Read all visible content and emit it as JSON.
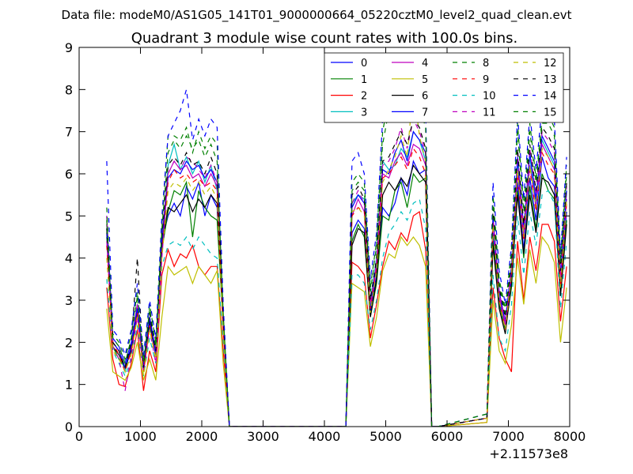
{
  "figure": {
    "suptitle": "Data file: modeM0/AS1G05_141T01_9000000664_05220cztM0_level2_quad_clean.evt"
  },
  "chart_data": {
    "type": "line",
    "title": "Quadrant 3 module wise count rates with 100.0s bins.",
    "xlabel": "",
    "ylabel": "",
    "x_offset_label": "+2.11573e8",
    "xlim": [
      0,
      8000
    ],
    "ylim": [
      0,
      9
    ],
    "xticks": [
      0,
      1000,
      2000,
      3000,
      4000,
      5000,
      6000,
      7000,
      8000
    ],
    "yticks": [
      0,
      1,
      2,
      3,
      4,
      5,
      6,
      7,
      8,
      9
    ],
    "grid": false,
    "legend_placement": "top-right",
    "x": [
      450,
      550,
      650,
      750,
      850,
      950,
      1050,
      1150,
      1250,
      1350,
      1450,
      1550,
      1650,
      1750,
      1850,
      1950,
      2050,
      2150,
      2250,
      2350,
      2450,
      2550,
      4350,
      4450,
      4550,
      4650,
      4750,
      4850,
      4950,
      5050,
      5150,
      5250,
      5350,
      5450,
      5550,
      5650,
      5750,
      5850,
      6650,
      6750,
      6850,
      6950,
      7050,
      7150,
      7250,
      7350,
      7450,
      7550,
      7650,
      7750,
      7850,
      7950
    ],
    "series": [
      {
        "name": "0",
        "color": "#0000ff",
        "dash": "solid",
        "values": [
          5.0,
          2.1,
          1.9,
          1.5,
          2.0,
          2.9,
          1.4,
          2.6,
          1.8,
          4.4,
          5.0,
          5.3,
          5.0,
          5.7,
          5.4,
          5.8,
          5.0,
          5.5,
          5.2,
          2.5,
          0.0,
          0.0,
          0.0,
          4.6,
          4.9,
          4.7,
          2.7,
          3.6,
          5.2,
          5.0,
          5.3,
          5.9,
          5.5,
          6.3,
          6.0,
          6.1,
          0.0,
          0.0,
          0.2,
          4.6,
          3.0,
          2.4,
          3.5,
          5.8,
          4.2,
          5.9,
          4.9,
          6.4,
          5.9,
          5.7,
          3.3,
          5.1
        ]
      },
      {
        "name": "1",
        "color": "#008000",
        "dash": "solid",
        "values": [
          4.8,
          1.9,
          1.6,
          1.4,
          1.9,
          2.7,
          1.4,
          2.4,
          1.7,
          4.2,
          5.1,
          5.6,
          5.5,
          5.8,
          4.5,
          5.6,
          5.2,
          5.0,
          4.9,
          2.4,
          0.0,
          0.0,
          0.0,
          4.4,
          4.8,
          4.5,
          2.6,
          3.4,
          5.0,
          4.9,
          5.6,
          5.8,
          5.2,
          6.0,
          5.8,
          5.9,
          0.0,
          0.0,
          0.2,
          4.4,
          2.9,
          2.3,
          3.3,
          5.6,
          4.0,
          5.7,
          4.7,
          6.0,
          5.6,
          5.4,
          3.2,
          4.9
        ]
      },
      {
        "name": "2",
        "color": "#ff0000",
        "dash": "solid",
        "values": [
          3.3,
          1.6,
          1.0,
          0.95,
          1.5,
          2.3,
          0.85,
          1.8,
          1.3,
          3.6,
          4.2,
          3.8,
          4.1,
          4.0,
          4.3,
          3.8,
          3.6,
          3.8,
          3.8,
          1.8,
          0.0,
          0.0,
          0.0,
          3.9,
          3.8,
          3.6,
          2.1,
          2.9,
          3.8,
          4.4,
          4.2,
          4.6,
          4.4,
          5.0,
          5.1,
          4.2,
          0.0,
          0.0,
          0.1,
          3.3,
          2.1,
          1.6,
          1.3,
          4.4,
          3.0,
          4.5,
          3.7,
          4.8,
          4.8,
          4.4,
          2.5,
          3.8
        ]
      },
      {
        "name": "3",
        "color": "#00bfbf",
        "dash": "solid",
        "values": [
          4.5,
          2.0,
          1.8,
          1.3,
          1.9,
          2.8,
          1.3,
          2.5,
          1.7,
          4.3,
          6.2,
          6.7,
          6.1,
          6.4,
          6.0,
          6.3,
          5.8,
          6.2,
          5.6,
          2.4,
          0.0,
          0.0,
          0.0,
          5.3,
          5.5,
          5.4,
          3.0,
          4.0,
          6.3,
          6.1,
          6.2,
          6.6,
          6.4,
          7.0,
          6.8,
          6.3,
          0.0,
          0.0,
          0.2,
          5.0,
          3.1,
          2.4,
          3.8,
          6.3,
          4.6,
          6.4,
          5.3,
          6.8,
          6.5,
          6.2,
          3.5,
          5.6
        ]
      },
      {
        "name": "4",
        "color": "#bf00bf",
        "dash": "solid",
        "values": [
          5.0,
          2.0,
          1.8,
          1.4,
          1.9,
          2.9,
          1.4,
          2.6,
          1.8,
          4.5,
          6.0,
          6.3,
          6.1,
          6.2,
          5.9,
          6.0,
          5.7,
          6.0,
          5.7,
          2.5,
          0.0,
          0.0,
          0.0,
          5.0,
          5.4,
          5.1,
          2.9,
          3.8,
          6.0,
          5.9,
          6.3,
          6.5,
          6.2,
          6.7,
          6.6,
          6.2,
          0.0,
          0.0,
          0.2,
          4.9,
          3.1,
          2.4,
          3.7,
          6.1,
          4.5,
          6.2,
          5.2,
          6.7,
          6.4,
          6.1,
          3.4,
          5.4
        ]
      },
      {
        "name": "5",
        "color": "#bfbf00",
        "dash": "solid",
        "values": [
          2.8,
          1.3,
          1.2,
          1.1,
          1.4,
          2.0,
          1.1,
          1.6,
          1.1,
          2.6,
          3.8,
          3.6,
          3.7,
          3.8,
          3.4,
          3.8,
          3.6,
          3.4,
          3.7,
          1.5,
          0.0,
          0.0,
          0.0,
          3.4,
          3.3,
          3.2,
          1.9,
          2.6,
          3.7,
          4.1,
          4.0,
          4.5,
          4.3,
          4.5,
          4.3,
          3.8,
          0.0,
          0.0,
          0.1,
          3.0,
          1.8,
          1.5,
          2.4,
          4.0,
          2.9,
          4.2,
          3.4,
          4.5,
          4.3,
          3.9,
          2.0,
          3.3
        ]
      },
      {
        "name": "6",
        "color": "#000000",
        "dash": "solid",
        "values": [
          4.6,
          1.9,
          1.7,
          1.4,
          1.8,
          2.8,
          1.3,
          2.5,
          1.7,
          4.3,
          5.2,
          5.1,
          5.3,
          5.5,
          5.1,
          5.4,
          5.2,
          5.5,
          5.3,
          2.4,
          0.0,
          0.0,
          0.0,
          4.3,
          4.7,
          4.6,
          2.6,
          3.5,
          5.5,
          5.8,
          5.6,
          5.9,
          5.7,
          6.2,
          6.0,
          5.8,
          0.0,
          0.0,
          0.2,
          4.3,
          2.8,
          2.2,
          3.4,
          5.5,
          4.1,
          5.5,
          4.6,
          5.9,
          5.8,
          5.5,
          3.1,
          4.8
        ]
      },
      {
        "name": "7",
        "color": "#0000ff",
        "dash": "solid",
        "values": [
          4.7,
          2.0,
          1.8,
          1.4,
          1.9,
          2.8,
          1.4,
          2.6,
          1.7,
          4.4,
          5.9,
          6.1,
          6.0,
          6.3,
          6.1,
          6.2,
          5.9,
          6.1,
          5.8,
          2.5,
          0.0,
          0.0,
          0.0,
          5.2,
          5.5,
          5.3,
          2.8,
          3.9,
          6.1,
          6.0,
          6.5,
          6.8,
          6.3,
          7.0,
          6.8,
          6.5,
          0.0,
          0.0,
          0.2,
          5.0,
          3.2,
          2.5,
          3.8,
          6.4,
          4.7,
          6.5,
          5.4,
          6.9,
          6.6,
          6.3,
          3.6,
          5.6
        ]
      },
      {
        "name": "8",
        "color": "#008000",
        "dash": "dashed",
        "values": [
          5.2,
          2.2,
          2.0,
          1.6,
          2.2,
          3.2,
          1.6,
          2.9,
          2.0,
          4.8,
          6.9,
          6.9,
          6.8,
          7.1,
          6.5,
          7.0,
          6.6,
          6.9,
          6.7,
          2.8,
          0.0,
          0.0,
          0.0,
          5.8,
          6.0,
          5.8,
          3.3,
          4.4,
          7.0,
          7.8,
          7.5,
          7.7,
          7.6,
          7.9,
          7.8,
          7.3,
          0.0,
          0.0,
          0.3,
          5.5,
          3.5,
          2.8,
          4.2,
          7.2,
          5.2,
          7.2,
          5.9,
          7.3,
          7.4,
          7.1,
          4.0,
          6.2
        ]
      },
      {
        "name": "9",
        "color": "#ff0000",
        "dash": "dashed",
        "values": [
          4.3,
          2.0,
          1.7,
          1.3,
          1.8,
          2.7,
          1.3,
          2.4,
          1.6,
          4.1,
          5.8,
          6.1,
          5.9,
          6.0,
          5.8,
          5.9,
          5.7,
          5.8,
          5.6,
          2.3,
          0.0,
          0.0,
          0.0,
          5.0,
          5.2,
          5.1,
          2.8,
          3.8,
          5.9,
          6.0,
          6.2,
          6.4,
          6.1,
          6.6,
          6.4,
          6.0,
          0.0,
          0.0,
          0.2,
          4.8,
          3.0,
          2.3,
          3.6,
          6.0,
          4.4,
          6.1,
          5.1,
          6.5,
          6.2,
          6.0,
          3.3,
          5.3
        ]
      },
      {
        "name": "10",
        "color": "#00bfbf",
        "dash": "dashed",
        "values": [
          3.5,
          1.8,
          1.5,
          1.2,
          1.6,
          2.4,
          1.2,
          2.1,
          1.5,
          3.8,
          4.3,
          4.4,
          4.3,
          4.5,
          4.2,
          4.5,
          4.3,
          4.1,
          4.0,
          2.0,
          0.0,
          0.0,
          0.0,
          3.6,
          3.6,
          3.4,
          2.3,
          3.0,
          4.0,
          4.6,
          4.8,
          5.1,
          4.9,
          5.3,
          5.4,
          4.7,
          0.0,
          0.0,
          0.2,
          3.6,
          2.1,
          1.8,
          2.9,
          5.0,
          3.6,
          5.1,
          4.3,
          5.5,
          5.6,
          5.3,
          2.8,
          4.4
        ]
      },
      {
        "name": "11",
        "color": "#bf00bf",
        "dash": "dashed",
        "values": [
          4.4,
          1.9,
          1.6,
          0.85,
          1.7,
          2.6,
          1.3,
          2.3,
          1.5,
          4.0,
          6.0,
          6.3,
          6.1,
          6.4,
          6.3,
          6.1,
          5.9,
          6.2,
          5.8,
          2.4,
          0.0,
          0.0,
          0.0,
          5.3,
          5.6,
          5.3,
          2.9,
          3.9,
          6.2,
          6.3,
          6.6,
          7.1,
          6.6,
          7.3,
          7.0,
          6.5,
          0.0,
          0.0,
          0.2,
          5.0,
          3.2,
          2.5,
          3.8,
          6.5,
          4.7,
          6.6,
          5.5,
          7.0,
          6.8,
          6.5,
          3.6,
          5.7
        ]
      },
      {
        "name": "12",
        "color": "#bfbf00",
        "dash": "dashed",
        "values": [
          4.0,
          1.8,
          1.6,
          1.3,
          1.7,
          2.6,
          1.2,
          2.3,
          1.6,
          4.0,
          5.6,
          5.8,
          5.7,
          5.9,
          5.6,
          5.8,
          5.5,
          5.7,
          5.4,
          2.3,
          0.0,
          0.0,
          0.0,
          5.1,
          5.2,
          5.0,
          2.7,
          3.7,
          5.8,
          6.1,
          6.4,
          6.9,
          6.4,
          8.1,
          6.9,
          6.3,
          0.0,
          0.0,
          0.2,
          4.8,
          3.0,
          2.3,
          3.6,
          6.1,
          4.5,
          6.2,
          5.2,
          6.6,
          6.4,
          6.1,
          3.3,
          5.4
        ]
      },
      {
        "name": "13",
        "color": "#000000",
        "dash": "dashed",
        "values": [
          4.7,
          2.0,
          1.8,
          1.4,
          2.0,
          4.0,
          1.4,
          2.7,
          1.8,
          4.5,
          6.2,
          6.4,
          6.2,
          6.5,
          6.2,
          6.3,
          6.0,
          6.4,
          6.0,
          2.6,
          0.0,
          0.0,
          0.0,
          5.5,
          5.7,
          5.4,
          3.0,
          4.0,
          6.3,
          6.4,
          6.7,
          7.0,
          6.7,
          7.3,
          7.1,
          6.6,
          0.0,
          0.0,
          0.2,
          5.2,
          3.3,
          2.6,
          3.9,
          6.6,
          4.8,
          6.7,
          5.6,
          7.1,
          6.9,
          6.6,
          3.7,
          5.8
        ]
      },
      {
        "name": "14",
        "color": "#0000ff",
        "dash": "dashed",
        "values": [
          6.3,
          2.3,
          2.1,
          1.7,
          2.3,
          3.4,
          1.7,
          3.0,
          2.1,
          5.0,
          6.9,
          7.2,
          7.5,
          8.0,
          6.8,
          7.3,
          6.9,
          7.3,
          7.1,
          2.9,
          0.0,
          0.0,
          0.0,
          6.3,
          6.5,
          6.0,
          3.5,
          4.6,
          7.3,
          7.5,
          7.6,
          8.0,
          7.8,
          8.5,
          8.1,
          7.6,
          0.0,
          0.0,
          0.3,
          5.8,
          3.7,
          2.9,
          4.3,
          7.4,
          5.4,
          7.4,
          6.1,
          7.6,
          8.4,
          7.3,
          4.1,
          6.4
        ]
      },
      {
        "name": "15",
        "color": "#008000",
        "dash": "dashed",
        "values": [
          4.9,
          2.1,
          1.9,
          1.5,
          2.1,
          3.1,
          1.5,
          2.8,
          1.9,
          4.7,
          6.5,
          6.8,
          6.6,
          6.9,
          6.6,
          6.8,
          6.4,
          6.7,
          6.3,
          2.7,
          0.0,
          0.0,
          0.0,
          5.6,
          5.8,
          5.6,
          3.2,
          4.3,
          6.7,
          7.5,
          7.3,
          7.5,
          7.4,
          7.7,
          7.6,
          7.1,
          0.0,
          0.0,
          0.3,
          5.4,
          3.4,
          2.7,
          4.1,
          7.0,
          5.1,
          7.0,
          5.8,
          7.2,
          7.2,
          6.9,
          3.9,
          6.0
        ]
      }
    ]
  }
}
